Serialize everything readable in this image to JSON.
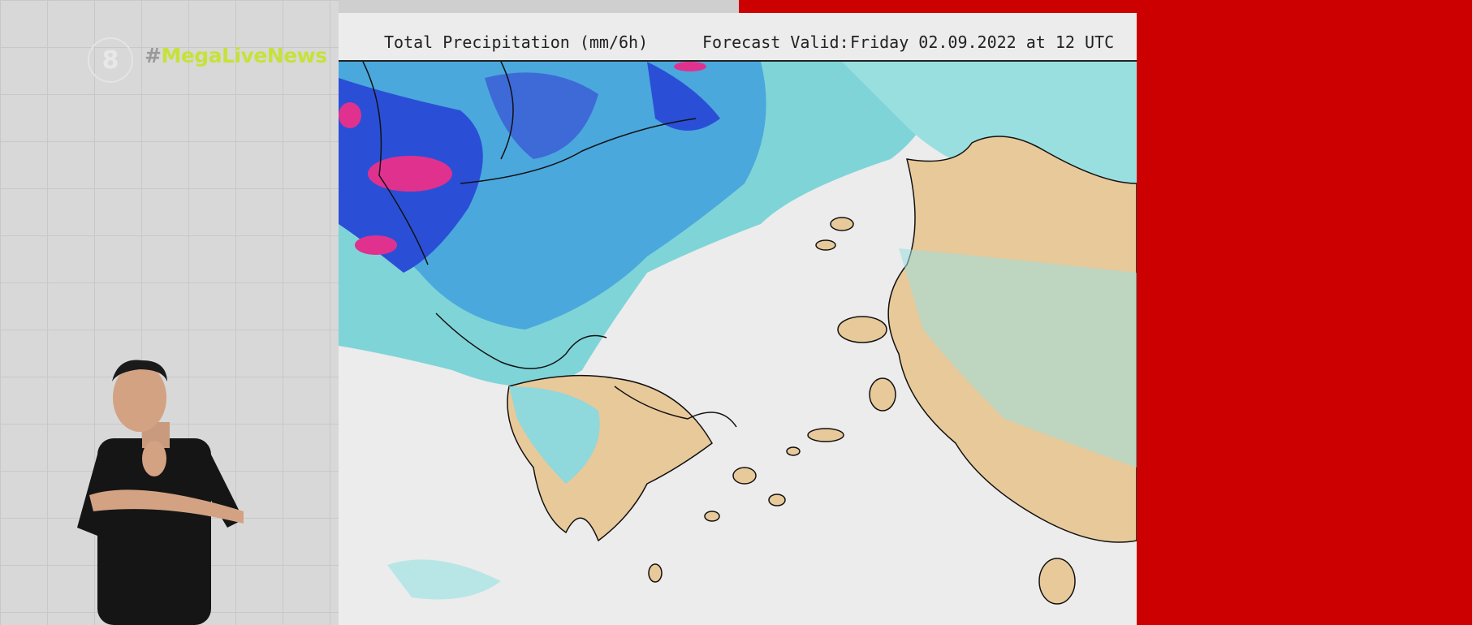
{
  "channel": {
    "logo": "8",
    "hash_symbol": "#",
    "hashtag": "MegaLiveNews"
  },
  "map": {
    "title": "Total Precipitation (mm/6h)",
    "valid_label": "Forecast Valid:",
    "valid_time": "Friday 02.09.2022 at 12 UTC"
  }
}
